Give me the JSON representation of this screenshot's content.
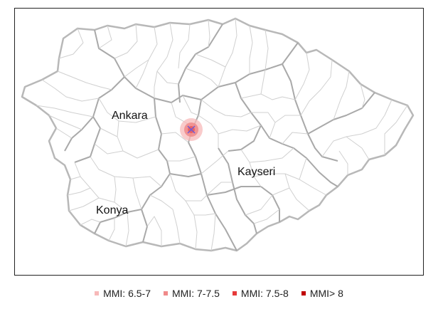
{
  "map": {
    "labels": {
      "ankara": "Ankara",
      "kayseri": "Kayseri",
      "konya": "Konya"
    },
    "epicenter_icon": "x-mark-icon",
    "colors": {
      "province_border": "#a6a6a6",
      "district_border": "#cfcfcf",
      "epicenter_mark": "#6f5bd6"
    }
  },
  "legend": {
    "items": [
      {
        "label": "MMI: 6.5-7",
        "color": "#f7b9b9"
      },
      {
        "label": "MMI: 7-7.5",
        "color": "#f08a8a"
      },
      {
        "label": "MMI: 7.5-8",
        "color": "#e63a3a"
      },
      {
        "label": "MMI> 8",
        "color": "#c00000"
      }
    ]
  }
}
